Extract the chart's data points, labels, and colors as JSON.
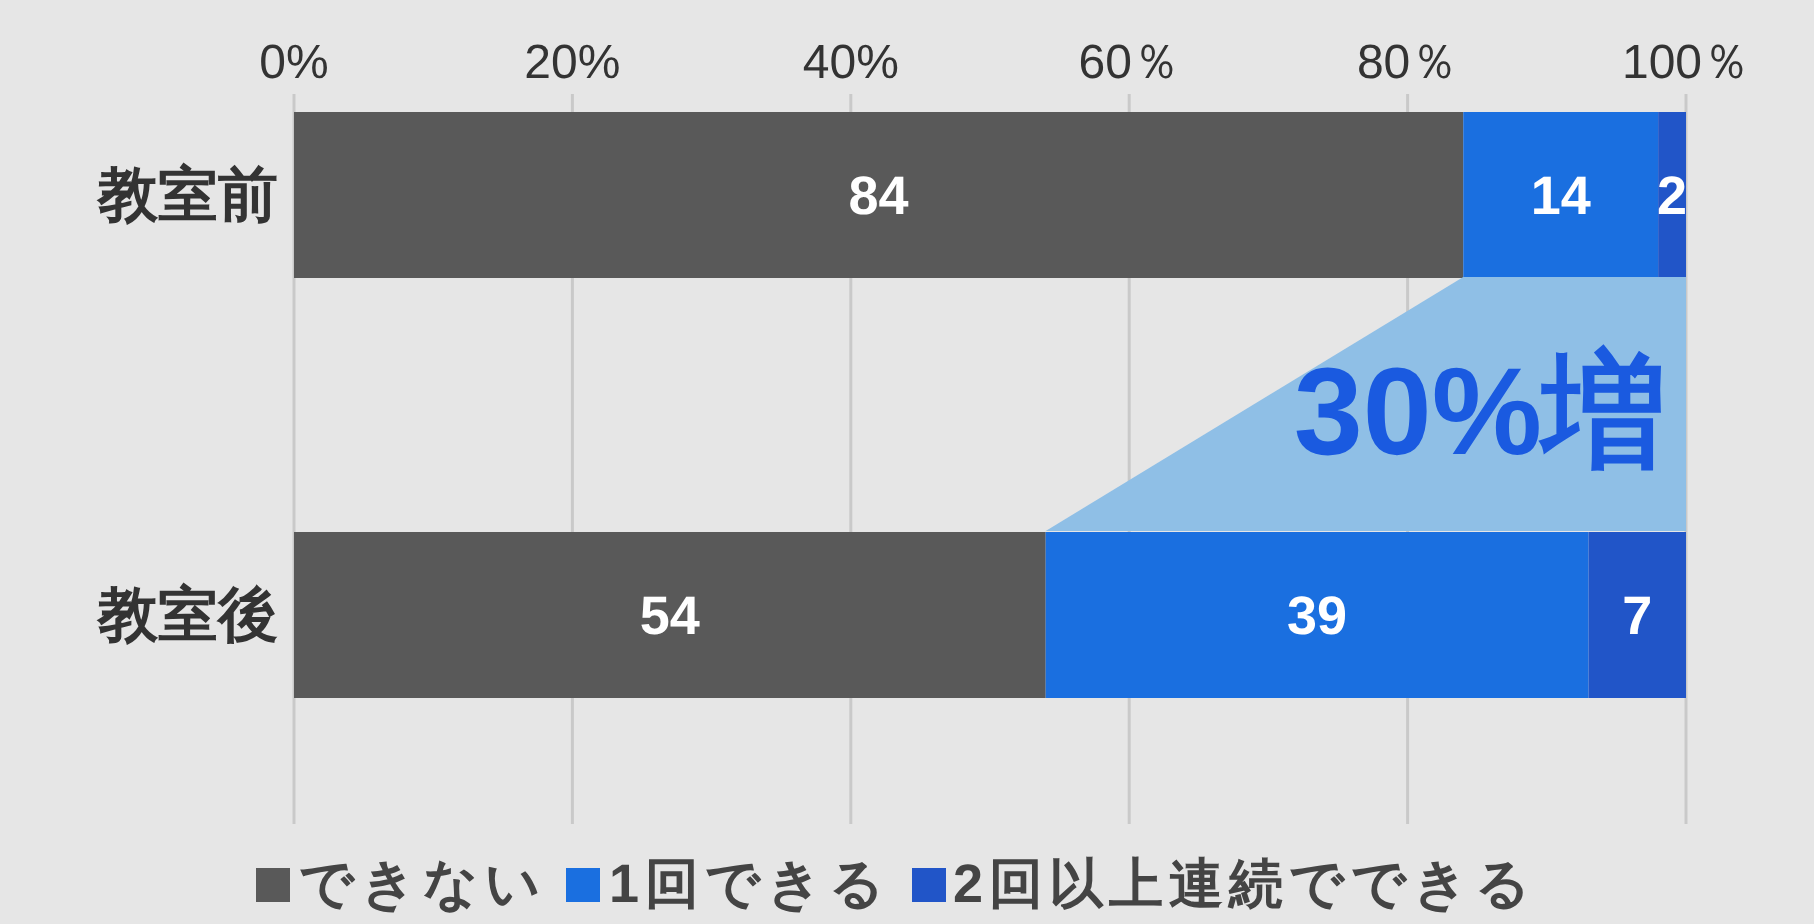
{
  "chart_data": {
    "type": "bar",
    "orientation": "horizontal",
    "stacked": true,
    "categories": [
      "教室前",
      "教室後"
    ],
    "series": [
      {
        "name": "できない",
        "color": "#595959",
        "values": [
          84,
          54
        ]
      },
      {
        "name": "1回できる",
        "color": "#1a6fe0",
        "values": [
          14,
          39
        ]
      },
      {
        "name": "2回以上連続でできる",
        "color": "#2155c8",
        "values": [
          2,
          7
        ]
      }
    ],
    "xlim": [
      0,
      100
    ],
    "xticks": [
      {
        "value": 0,
        "label": "0%"
      },
      {
        "value": 20,
        "label": "20%"
      },
      {
        "value": 40,
        "label": "40%"
      },
      {
        "value": 60,
        "label": "60％"
      },
      {
        "value": 80,
        "label": "80％"
      },
      {
        "value": 100,
        "label": "100％"
      }
    ],
    "grid": "x",
    "data_labels": true,
    "legend": "bottom",
    "annotations": [
      "30%増"
    ]
  }
}
